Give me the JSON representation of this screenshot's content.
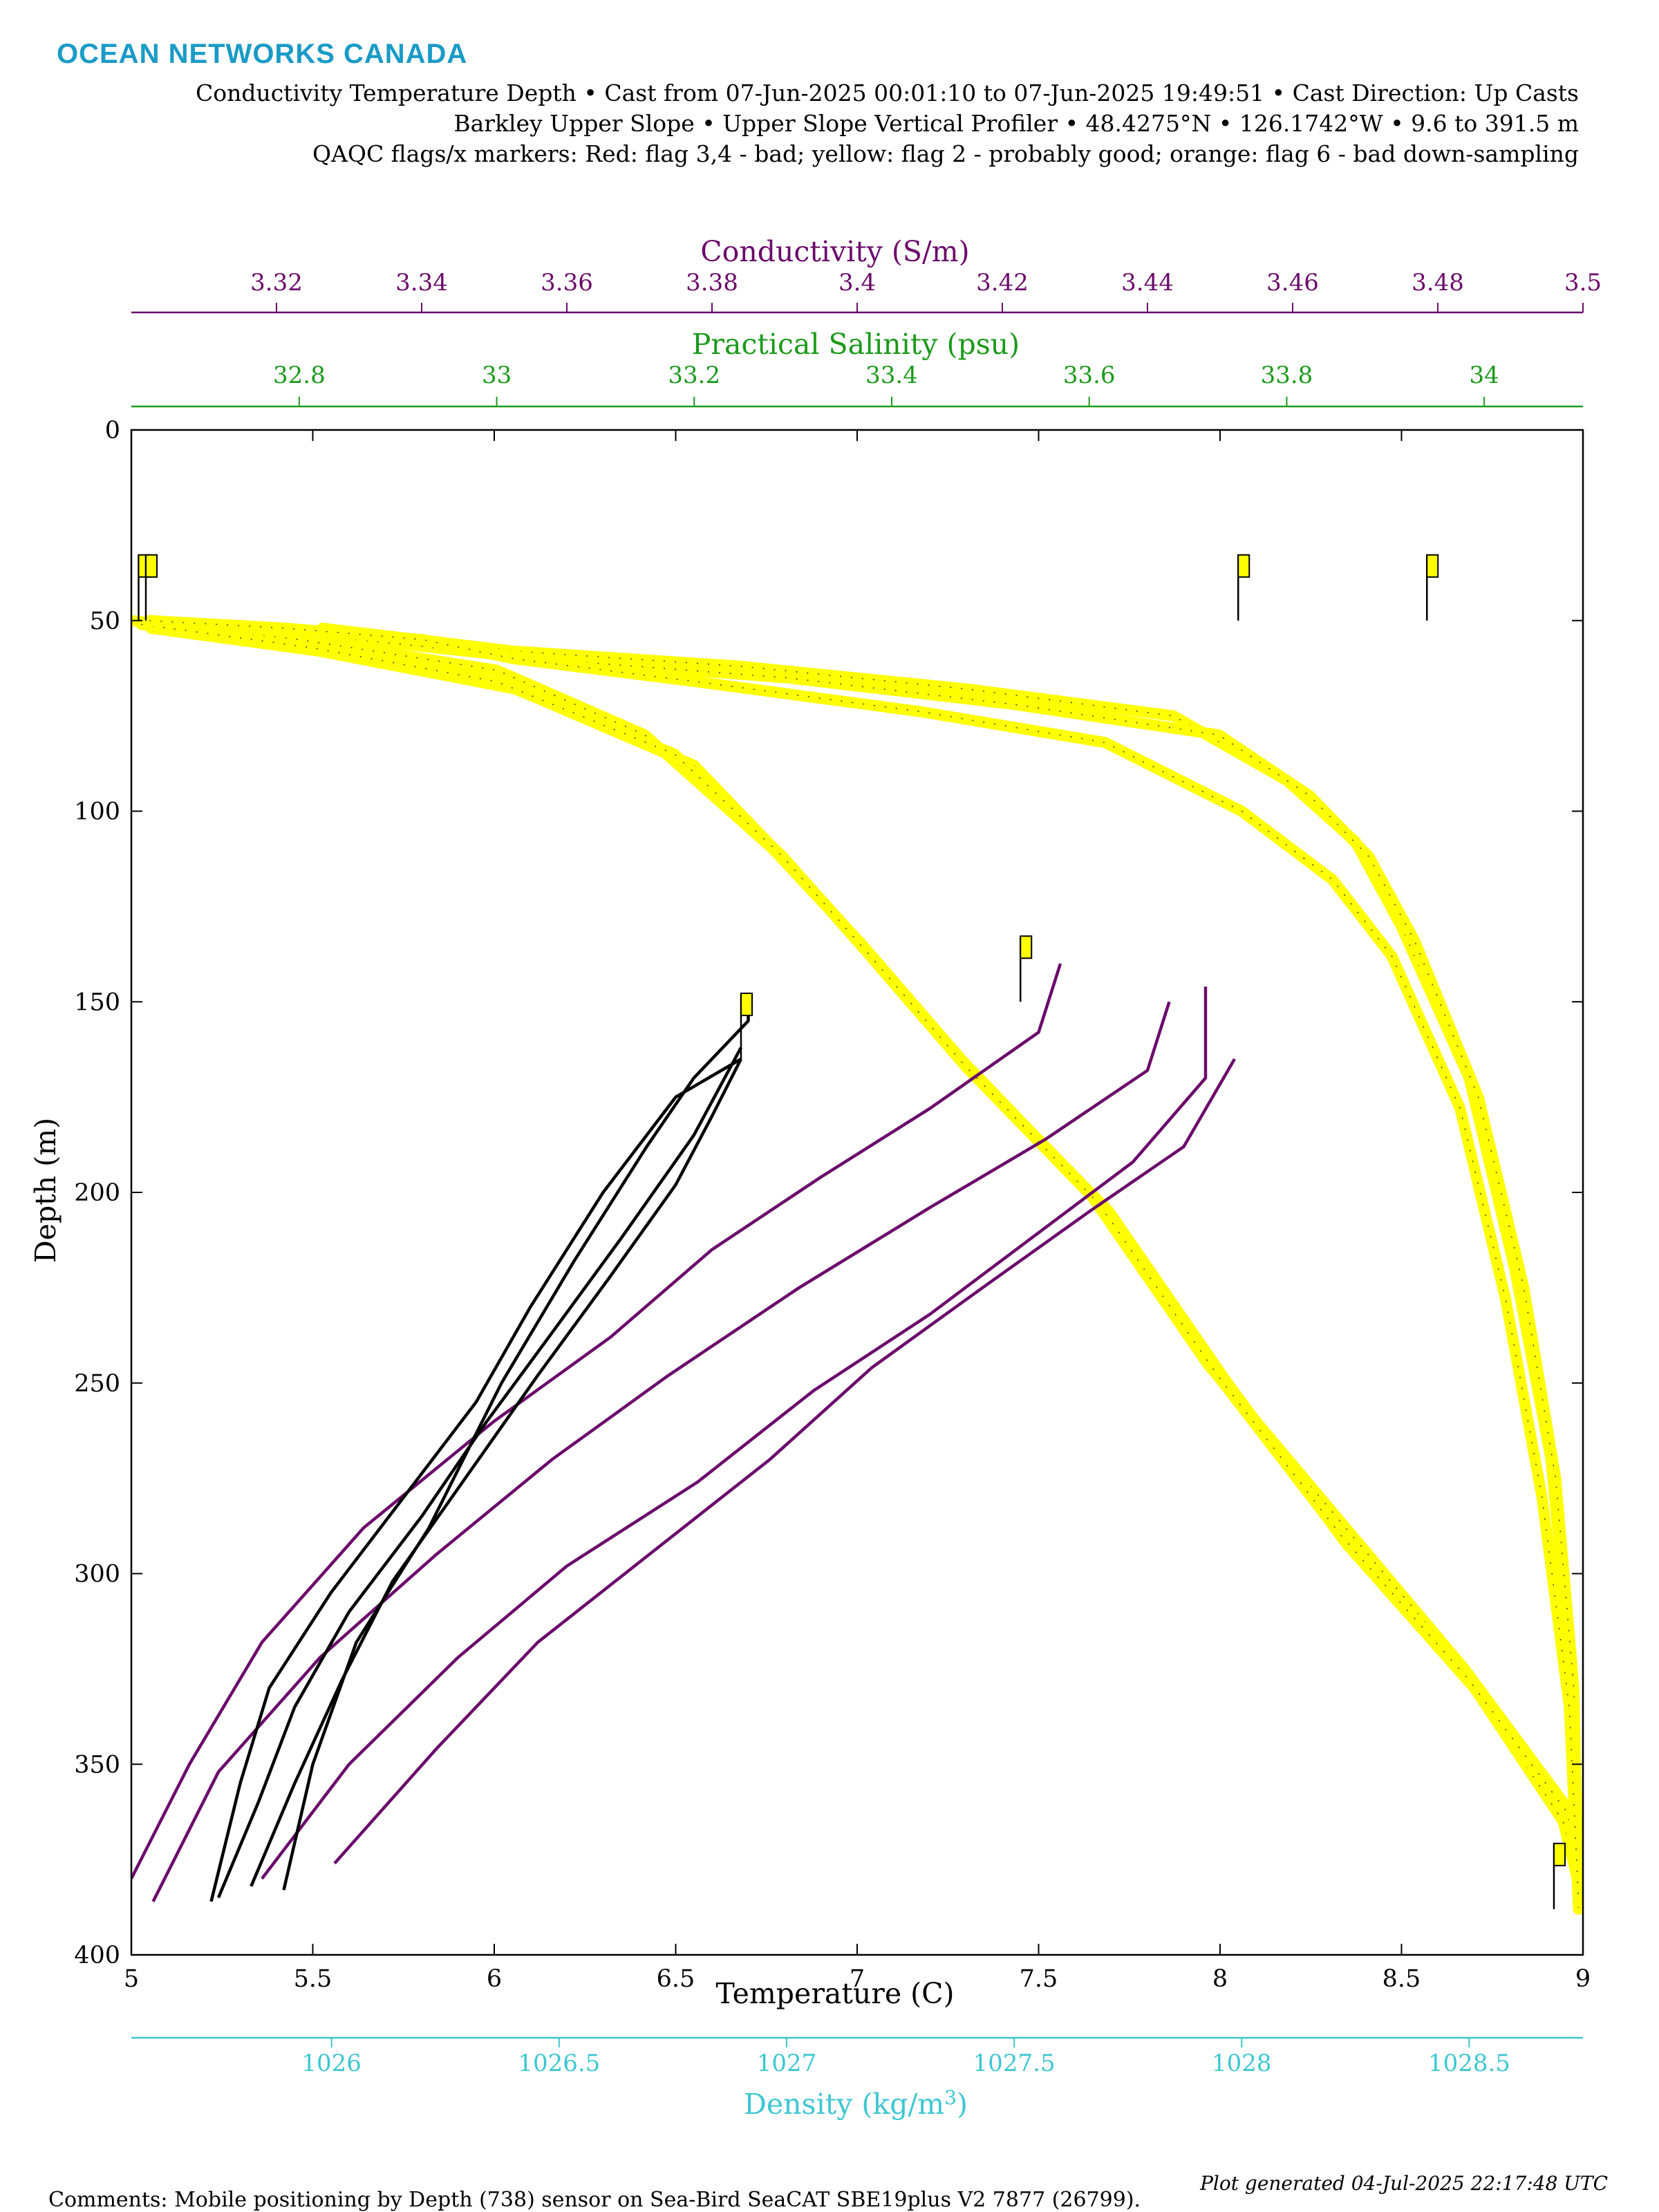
{
  "header": {
    "brand": "OCEAN NETWORKS CANADA",
    "line1": "Conductivity Temperature Depth • Cast from 07-Jun-2025 00:01:10 to 07-Jun-2025 19:49:51 • Cast Direction: Up Casts",
    "line2": "Barkley Upper Slope • Upper Slope Vertical Profiler • 48.4275°N • 126.1742°W • 9.6 to 391.5 m",
    "line3": "QAQC flags/x markers: Red: flag 3,4 - bad; yellow: flag 2 - probably good; orange: flag 6 - bad down-sampling"
  },
  "footer": {
    "comments": "Comments: Mobile positioning by Depth (738) sensor on Sea-Bird SeaCAT SBE19plus V2 7877 (26799).",
    "generated": "Plot generated 04-Jul-2025 22:17:48 UTC"
  },
  "colors": {
    "brand": "#1a9bc7",
    "conductivity": "#6b0a6b",
    "salinity": "#1a9a1a",
    "temperature": "#000000",
    "density": "#3cc7d2",
    "flag_probably_good": "#ffff00"
  },
  "chart_data": {
    "type": "line",
    "y_axis": {
      "label": "Depth (m)",
      "range": [
        0,
        400
      ],
      "reversed": true,
      "ticks": [
        0,
        50,
        100,
        150,
        200,
        250,
        300,
        350,
        400
      ]
    },
    "x_axes": {
      "temperature": {
        "label": "Temperature (C)",
        "range": [
          5,
          9
        ],
        "ticks": [
          5,
          5.5,
          6,
          6.5,
          7,
          7.5,
          8,
          8.5,
          9
        ],
        "tick_labels": [
          "5",
          "5.5",
          "6",
          "6.5",
          "7",
          "7.5",
          "8",
          "8.5",
          "9"
        ]
      },
      "conductivity": {
        "label": "Conductivity (S/m)",
        "range": [
          3.3,
          3.5
        ],
        "ticks": [
          3.32,
          3.34,
          3.36,
          3.38,
          3.4,
          3.42,
          3.44,
          3.46,
          3.48,
          3.5
        ],
        "tick_labels": [
          "3.32",
          "3.34",
          "3.36",
          "3.38",
          "3.4",
          "3.42",
          "3.44",
          "3.46",
          "3.48",
          "3.5"
        ]
      },
      "salinity": {
        "label": "Practical Salinity (psu)",
        "range": [
          32.63,
          34.1
        ],
        "ticks": [
          32.8,
          33,
          33.2,
          33.4,
          33.6,
          33.8,
          34
        ],
        "tick_labels": [
          "32.8",
          "33",
          "33.2",
          "33.4",
          "33.6",
          "33.8",
          "34"
        ]
      },
      "density": {
        "label": "Density (kg/m³)",
        "range": [
          1025.56,
          1028.75
        ],
        "ticks": [
          1026,
          1026.5,
          1027,
          1027.5,
          1028,
          1028.5
        ],
        "tick_labels": [
          "1026",
          "1026.5",
          "1027",
          "1027.5",
          "1028",
          "1028.5"
        ]
      }
    },
    "series": [
      {
        "parameter": "temperature",
        "flag": 2,
        "casts": [
          [
            [
              5.42,
              383
            ],
            [
              5.5,
              350
            ],
            [
              5.62,
              318
            ],
            [
              5.82,
              288
            ],
            [
              6.02,
              250
            ],
            [
              6.22,
              218
            ],
            [
              6.42,
              188
            ],
            [
              6.55,
              170
            ],
            [
              6.7,
              155
            ],
            [
              6.7,
              150
            ]
          ],
          [
            [
              5.22,
              386
            ],
            [
              5.3,
              355
            ],
            [
              5.38,
              330
            ],
            [
              5.55,
              305
            ],
            [
              5.75,
              280
            ],
            [
              5.95,
              255
            ],
            [
              6.1,
              230
            ],
            [
              6.3,
              200
            ],
            [
              6.5,
              175
            ],
            [
              6.68,
              165
            ]
          ],
          [
            [
              5.24,
              385
            ],
            [
              5.35,
              360
            ],
            [
              5.45,
              335
            ],
            [
              5.6,
              310
            ],
            [
              5.8,
              285
            ],
            [
              5.98,
              260
            ],
            [
              6.15,
              238
            ],
            [
              6.35,
              212
            ],
            [
              6.55,
              185
            ],
            [
              6.68,
              162
            ]
          ],
          [
            [
              5.33,
              382
            ],
            [
              5.45,
              355
            ],
            [
              5.58,
              328
            ],
            [
              5.72,
              302
            ],
            [
              5.92,
              275
            ],
            [
              6.12,
              248
            ],
            [
              6.32,
              222
            ],
            [
              6.5,
              198
            ],
            [
              6.6,
              180
            ],
            [
              6.68,
              165
            ]
          ]
        ]
      },
      {
        "parameter": "conductivity",
        "flag": 2,
        "casts": [
          [
            [
              3.3,
              380
            ],
            [
              3.308,
              350
            ],
            [
              3.318,
              318
            ],
            [
              3.332,
              288
            ],
            [
              3.35,
              260
            ],
            [
              3.366,
              238
            ],
            [
              3.38,
              215
            ],
            [
              3.395,
              196
            ],
            [
              3.41,
              178
            ],
            [
              3.425,
              158
            ],
            [
              3.428,
              140
            ]
          ],
          [
            [
              3.303,
              386
            ],
            [
              3.312,
              352
            ],
            [
              3.326,
              322
            ],
            [
              3.342,
              295
            ],
            [
              3.358,
              270
            ],
            [
              3.374,
              248
            ],
            [
              3.392,
              225
            ],
            [
              3.41,
              204
            ],
            [
              3.426,
              186
            ],
            [
              3.44,
              168
            ],
            [
              3.443,
              150
            ]
          ],
          [
            [
              3.318,
              380
            ],
            [
              3.33,
              350
            ],
            [
              3.345,
              322
            ],
            [
              3.36,
              298
            ],
            [
              3.378,
              276
            ],
            [
              3.394,
              252
            ],
            [
              3.41,
              232
            ],
            [
              3.424,
              212
            ],
            [
              3.438,
              192
            ],
            [
              3.448,
              170
            ],
            [
              3.448,
              146
            ]
          ],
          [
            [
              3.328,
              376
            ],
            [
              3.342,
              346
            ],
            [
              3.356,
              318
            ],
            [
              3.372,
              294
            ],
            [
              3.388,
              270
            ],
            [
              3.402,
              246
            ],
            [
              3.418,
              224
            ],
            [
              3.432,
              205
            ],
            [
              3.445,
              188
            ],
            [
              3.452,
              165
            ]
          ]
        ]
      },
      {
        "parameter": "salinity",
        "flag": 2,
        "casts": [
          [
            [
              32.63,
              50
            ],
            [
              32.8,
              55
            ],
            [
              33.0,
              63
            ],
            [
              33.15,
              80
            ],
            [
              33.28,
              110
            ],
            [
              33.37,
              135
            ],
            [
              33.47,
              165
            ],
            [
              33.6,
              200
            ],
            [
              33.72,
              245
            ],
            [
              33.85,
              285
            ],
            [
              33.98,
              325
            ],
            [
              34.08,
              360
            ],
            [
              34.1,
              388
            ]
          ],
          [
            [
              32.65,
              52
            ],
            [
              32.82,
              58
            ],
            [
              33.02,
              68
            ],
            [
              33.2,
              88
            ],
            [
              33.3,
              115
            ],
            [
              33.38,
              138
            ],
            [
              33.48,
              168
            ],
            [
              33.62,
              205
            ],
            [
              33.74,
              250
            ],
            [
              33.86,
              292
            ],
            [
              33.99,
              330
            ],
            [
              34.08,
              365
            ],
            [
              34.1,
              386
            ]
          ],
          [
            [
              32.64,
              51
            ],
            [
              32.81,
              57
            ],
            [
              33.0,
              66
            ],
            [
              33.18,
              85
            ],
            [
              33.29,
              112
            ],
            [
              33.375,
              137
            ],
            [
              33.475,
              167
            ],
            [
              33.61,
              203
            ],
            [
              33.73,
              248
            ],
            [
              33.855,
              290
            ],
            [
              33.985,
              328
            ],
            [
              34.085,
              363
            ],
            [
              34.1,
              385
            ]
          ]
        ]
      },
      {
        "parameter": "density",
        "flag": 2,
        "casts": [
          [
            [
              1025.98,
              52
            ],
            [
              1026.4,
              58
            ],
            [
              1026.9,
              62
            ],
            [
              1027.4,
              68
            ],
            [
              1027.85,
              75
            ],
            [
              1028.1,
              92
            ],
            [
              1028.25,
              108
            ],
            [
              1028.35,
              130
            ],
            [
              1028.5,
              170
            ],
            [
              1028.6,
              220
            ],
            [
              1028.68,
              270
            ],
            [
              1028.72,
              320
            ],
            [
              1028.74,
              388
            ]
          ],
          [
            [
              1025.98,
              54
            ],
            [
              1026.45,
              60
            ],
            [
              1027.0,
              65
            ],
            [
              1027.5,
              72
            ],
            [
              1027.95,
              80
            ],
            [
              1028.15,
              96
            ],
            [
              1028.28,
              112
            ],
            [
              1028.38,
              134
            ],
            [
              1028.52,
              175
            ],
            [
              1028.62,
              225
            ],
            [
              1028.69,
              275
            ],
            [
              1028.73,
              330
            ],
            [
              1028.74,
              386
            ]
          ],
          [
            [
              1025.6,
              50
            ],
            [
              1025.9,
              52
            ],
            [
              1026.2,
              55
            ],
            [
              1026.4,
              60
            ],
            [
              1026.8,
              66
            ],
            [
              1027.3,
              74
            ],
            [
              1027.7,
              82
            ],
            [
              1028.0,
              100
            ],
            [
              1028.2,
              118
            ],
            [
              1028.33,
              138
            ],
            [
              1028.48,
              178
            ],
            [
              1028.58,
              228
            ],
            [
              1028.66,
              280
            ],
            [
              1028.72,
              335
            ],
            [
              1028.74,
              385
            ]
          ]
        ]
      }
    ],
    "flag_markers": [
      {
        "temperature": 5.02,
        "depth": 50
      },
      {
        "temperature": 5.04,
        "depth": 50
      },
      {
        "temperature": 6.68,
        "depth": 165
      },
      {
        "temperature": 7.45,
        "depth": 150
      },
      {
        "temperature": 8.05,
        "depth": 50
      },
      {
        "temperature": 8.57,
        "depth": 50
      },
      {
        "temperature": 8.92,
        "depth": 388
      }
    ]
  }
}
